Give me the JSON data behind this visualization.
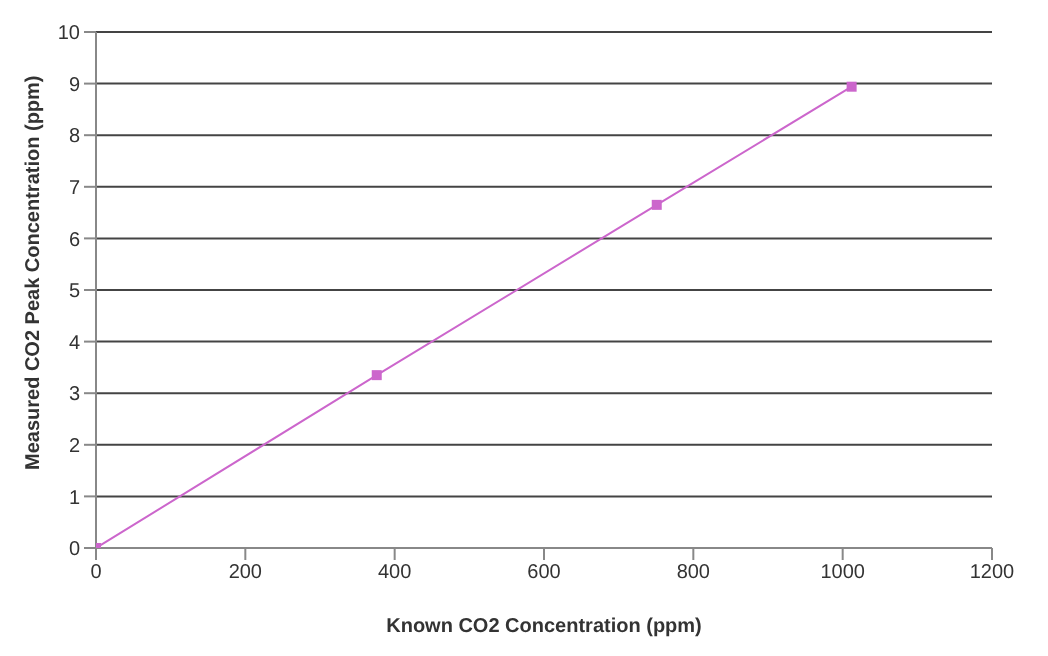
{
  "chart_data": {
    "type": "line",
    "xlabel": "Known CO2 Concentration (ppm)",
    "ylabel": "Measured CO2 Peak Concentration (ppm)",
    "x": [
      0,
      376,
      751,
      1012
    ],
    "series": [
      {
        "color": "#cc66cc",
        "values": [
          0,
          3.35,
          6.65,
          8.94
        ]
      }
    ],
    "xlim": [
      0,
      1200
    ],
    "xticks": [
      0,
      200,
      400,
      600,
      800,
      1000,
      1200
    ],
    "ylim": [
      0,
      10
    ],
    "yticks": [
      0,
      1,
      2,
      3,
      4,
      5,
      6,
      7,
      8,
      9,
      10
    ],
    "grid": "y",
    "legend": false,
    "marker": "square",
    "line_style": "solid"
  }
}
